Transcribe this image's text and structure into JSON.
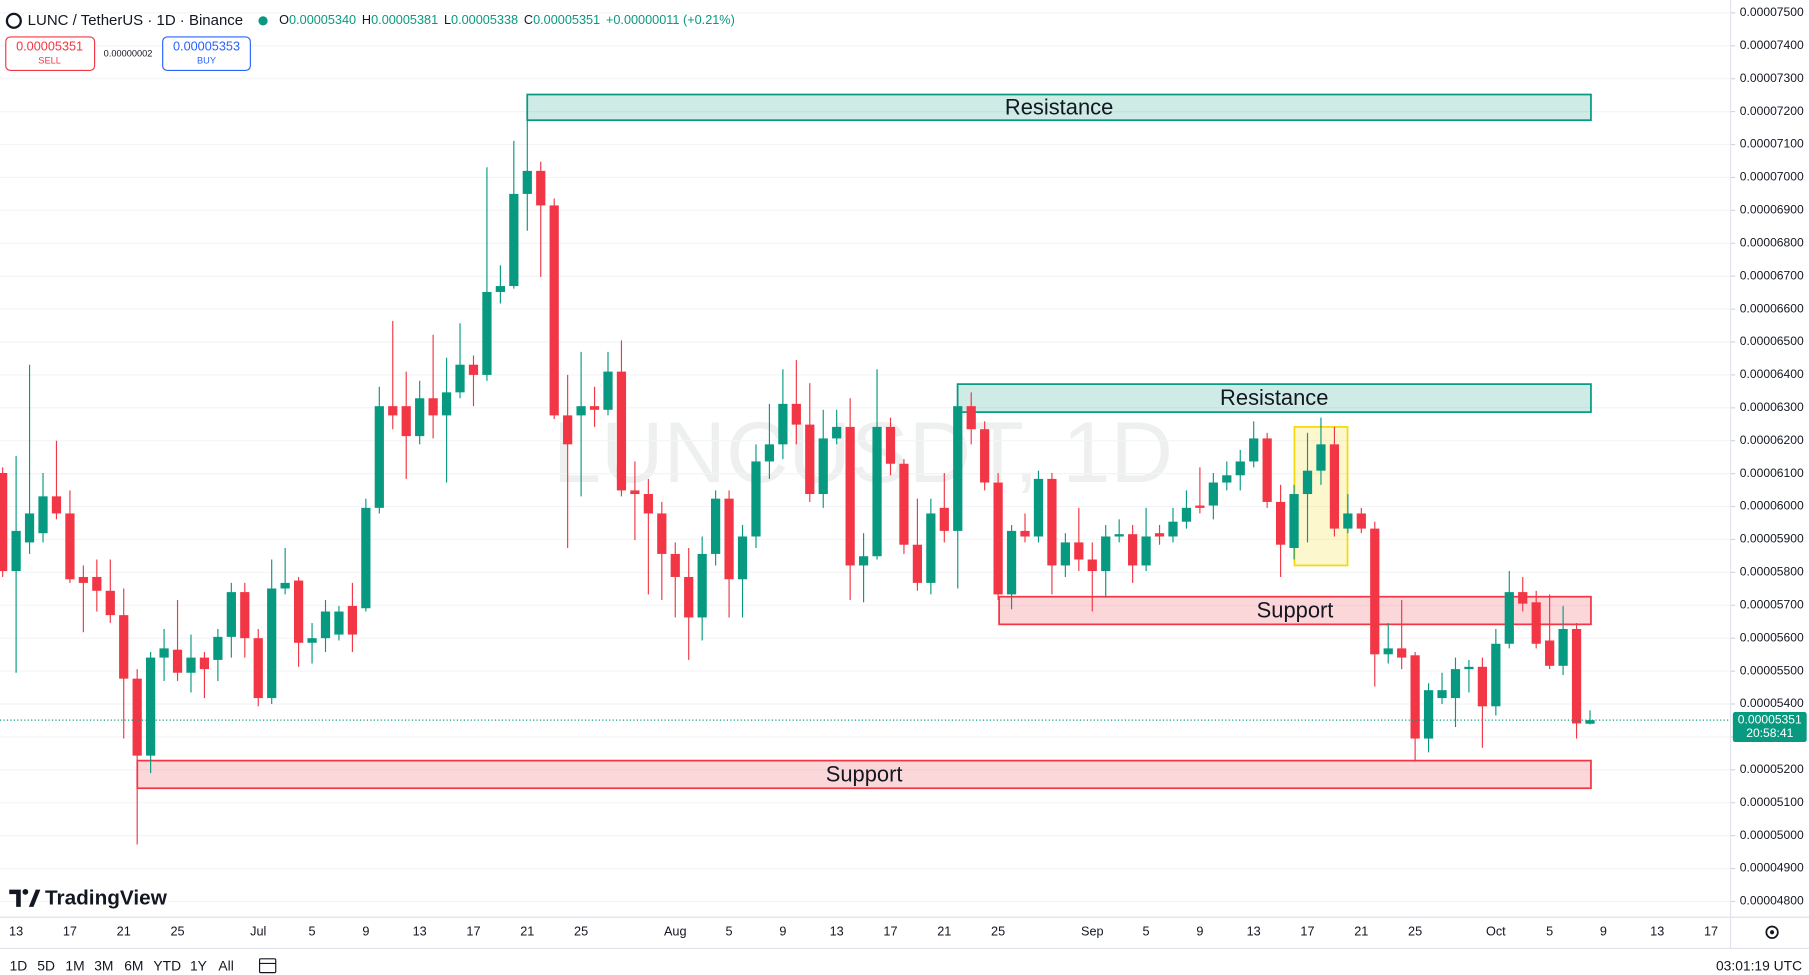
{
  "header": {
    "symbol": "LUNC / TetherUS · 1D · Binance",
    "ohlc": [
      {
        "label": "O",
        "value": "0.00005340"
      },
      {
        "label": "H",
        "value": "0.00005381"
      },
      {
        "label": "L",
        "value": "0.00005338"
      },
      {
        "label": "C",
        "value": "0.00005351"
      }
    ],
    "change": "+0.00000011 (+0.21%)",
    "sell": {
      "price": "0.00005351",
      "label": "SELL"
    },
    "spread": "0.00000002",
    "buy": {
      "price": "0.00005353",
      "label": "BUY"
    }
  },
  "chart_data": {
    "type": "candlestick",
    "watermark": "LUNCUSDT, 1D",
    "categories": [
      null,
      "13",
      null,
      null,
      null,
      "17",
      null,
      null,
      null,
      "21",
      null,
      null,
      null,
      "25",
      null,
      null,
      null,
      null,
      null,
      "Jul",
      null,
      null,
      null,
      "5",
      null,
      null,
      null,
      "9",
      null,
      null,
      null,
      "13",
      null,
      null,
      null,
      "17",
      null,
      null,
      null,
      "21",
      null,
      null,
      null,
      "25",
      null,
      null,
      null,
      null,
      null,
      null,
      "Aug",
      null,
      null,
      null,
      "5",
      null,
      null,
      null,
      "9",
      null,
      null,
      null,
      "13",
      null,
      null,
      null,
      "17",
      null,
      null,
      null,
      "21",
      null,
      null,
      null,
      "25",
      null,
      null,
      null,
      null,
      null,
      null,
      "Sep",
      null,
      null,
      null,
      "5",
      null,
      null,
      null,
      "9",
      null,
      null,
      null,
      "13",
      null,
      null,
      null,
      "17",
      null,
      null,
      null,
      "21",
      null,
      null,
      null,
      "25",
      null,
      null,
      null,
      null,
      null,
      "Oct",
      null,
      null,
      null,
      "5",
      null,
      null,
      null,
      "9",
      null,
      null,
      null,
      "13",
      null,
      null,
      null,
      "17",
      null
    ],
    "open": [
      6.102e-05,
      5.804e-05,
      5.891e-05,
      5.919e-05,
      6.031e-05,
      5.979e-05,
      5.786e-05,
      5.786e-05,
      5.744e-05,
      5.67e-05,
      5.477e-05,
      5.243e-05,
      5.541e-05,
      5.565e-05,
      5.495e-05,
      5.541e-05,
      5.534e-05,
      5.604e-05,
      5.74e-05,
      5.6e-05,
      5.418e-05,
      5.751e-05,
      5.775e-05,
      5.586e-05,
      5.6e-05,
      5.611e-05,
      5.698e-05,
      5.691e-05,
      5.996e-05,
      6.305e-05,
      6.305e-05,
      6.214e-05,
      6.329e-05,
      6.277e-05,
      6.347e-05,
      6.431e-05,
      6.4e-05,
      6.652e-05,
      6.67e-05,
      6.95e-05,
      7.02e-05,
      6.915e-05,
      6.277e-05,
      6.277e-05,
      6.305e-05,
      6.294e-05,
      6.41e-05,
      6.049e-05,
      6.038e-05,
      5.979e-05,
      5.856e-05,
      5.786e-05,
      5.663e-05,
      5.856e-05,
      6.024e-05,
      5.779e-05,
      5.909e-05,
      6.137e-05,
      6.189e-05,
      6.312e-05,
      6.249e-05,
      6.038e-05,
      6.207e-05,
      6.242e-05,
      5.821e-05,
      5.849e-05,
      6.242e-05,
      6.13e-05,
      5.884e-05,
      5.768e-05,
      5.996e-05,
      5.926e-05,
      6.305e-05,
      6.235e-05,
      6.073e-05,
      5.733e-05,
      5.926e-05,
      5.909e-05,
      6.084e-05,
      5.821e-05,
      5.891e-05,
      5.839e-05,
      5.804e-05,
      5.909e-05,
      5.916e-05,
      5.821e-05,
      5.919e-05,
      5.909e-05,
      5.954e-05,
      6.003e-05,
      6.003e-05,
      6.073e-05,
      6.095e-05,
      6.137e-05,
      6.207e-05,
      6.014e-05,
      5.874e-05,
      6.038e-05,
      6.109e-05,
      6.189e-05,
      5.933e-05,
      5.979e-05,
      5.933e-05,
      5.551e-05,
      5.569e-05,
      5.548e-05,
      5.295e-05,
      5.418e-05,
      5.418e-05,
      5.506e-05,
      5.513e-05,
      5.393e-05,
      5.583e-05,
      5.74e-05,
      5.709e-05,
      5.593e-05,
      5.516e-05,
      5.628e-05,
      5.34e-05,
      null,
      null,
      null,
      null,
      null,
      null,
      null,
      null,
      null,
      null
    ],
    "high": [
      6.119e-05,
      6.154e-05,
      6.431e-05,
      6.102e-05,
      6.2e-05,
      6.049e-05,
      5.821e-05,
      5.839e-05,
      5.839e-05,
      5.751e-05,
      5.506e-05,
      5.558e-05,
      5.628e-05,
      5.716e-05,
      5.611e-05,
      5.558e-05,
      5.628e-05,
      5.768e-05,
      5.768e-05,
      5.628e-05,
      5.839e-05,
      5.874e-05,
      5.786e-05,
      5.646e-05,
      5.716e-05,
      5.698e-05,
      5.768e-05,
      6.024e-05,
      6.364e-05,
      6.564e-05,
      6.41e-05,
      6.382e-05,
      6.522e-05,
      6.452e-05,
      6.557e-05,
      6.459e-05,
      7.031e-05,
      6.733e-05,
      7.111e-05,
      7.188e-05,
      7.048e-05,
      6.936e-05,
      6.4e-05,
      6.47e-05,
      6.364e-05,
      6.47e-05,
      6.505e-05,
      6.137e-05,
      6.084e-05,
      6.014e-05,
      5.891e-05,
      5.874e-05,
      5.909e-05,
      6.049e-05,
      6.049e-05,
      5.944e-05,
      6.189e-05,
      6.312e-05,
      6.417e-05,
      6.445e-05,
      6.375e-05,
      6.294e-05,
      6.294e-05,
      6.329e-05,
      5.919e-05,
      6.417e-05,
      6.27e-05,
      6.144e-05,
      6.024e-05,
      6.024e-05,
      6.102e-05,
      6.364e-05,
      6.347e-05,
      6.259e-05,
      6.102e-05,
      5.944e-05,
      5.979e-05,
      6.109e-05,
      6.102e-05,
      5.919e-05,
      5.996e-05,
      5.891e-05,
      5.944e-05,
      5.961e-05,
      5.944e-05,
      5.996e-05,
      5.944e-05,
      5.996e-05,
      6.049e-05,
      6.119e-05,
      6.102e-05,
      6.137e-05,
      6.172e-05,
      6.259e-05,
      6.224e-05,
      6.066e-05,
      6.066e-05,
      6.224e-05,
      6.27e-05,
      6.242e-05,
      6.038e-05,
      5.996e-05,
      5.954e-05,
      5.646e-05,
      5.716e-05,
      5.558e-05,
      5.463e-05,
      5.495e-05,
      5.541e-05,
      5.534e-05,
      5.541e-05,
      5.628e-05,
      5.804e-05,
      5.786e-05,
      5.744e-05,
      5.733e-05,
      5.698e-05,
      5.646e-05,
      5.381e-05,
      null,
      null,
      null,
      null,
      null,
      null,
      null,
      null,
      null,
      null
    ],
    "low": [
      5.786e-05,
      5.495e-05,
      5.856e-05,
      5.891e-05,
      5.961e-05,
      5.768e-05,
      5.618e-05,
      5.681e-05,
      5.646e-05,
      5.295e-05,
      4.973e-05,
      5.19e-05,
      5.47e-05,
      5.47e-05,
      5.435e-05,
      5.418e-05,
      5.47e-05,
      5.541e-05,
      5.541e-05,
      5.393e-05,
      5.4e-05,
      5.733e-05,
      5.513e-05,
      5.523e-05,
      5.558e-05,
      5.593e-05,
      5.558e-05,
      5.681e-05,
      5.979e-05,
      6.235e-05,
      6.084e-05,
      6.189e-05,
      6.207e-05,
      6.073e-05,
      6.329e-05,
      6.305e-05,
      6.382e-05,
      6.617e-05,
      6.662e-05,
      6.838e-05,
      6.698e-05,
      6.266e-05,
      5.874e-05,
      6.031e-05,
      6.242e-05,
      6.277e-05,
      6.031e-05,
      5.898e-05,
      5.733e-05,
      5.716e-05,
      5.663e-05,
      5.534e-05,
      5.593e-05,
      5.821e-05,
      5.663e-05,
      5.663e-05,
      5.874e-05,
      6.084e-05,
      6.144e-05,
      6.189e-05,
      6.014e-05,
      5.996e-05,
      6.189e-05,
      5.716e-05,
      5.709e-05,
      5.839e-05,
      6.095e-05,
      5.856e-05,
      5.744e-05,
      5.733e-05,
      5.891e-05,
      5.751e-05,
      6.189e-05,
      6.049e-05,
      5.716e-05,
      5.688e-05,
      5.891e-05,
      5.891e-05,
      5.733e-05,
      5.786e-05,
      5.804e-05,
      5.681e-05,
      5.723e-05,
      5.891e-05,
      5.768e-05,
      5.804e-05,
      5.884e-05,
      5.891e-05,
      5.933e-05,
      5.979e-05,
      5.961e-05,
      6.049e-05,
      6.049e-05,
      6.119e-05,
      5.996e-05,
      5.786e-05,
      5.839e-05,
      5.891e-05,
      6.066e-05,
      5.909e-05,
      5.919e-05,
      5.919e-05,
      5.453e-05,
      5.523e-05,
      5.506e-05,
      5.225e-05,
      5.253e-05,
      5.4e-05,
      5.33e-05,
      5.435e-05,
      5.267e-05,
      5.365e-05,
      5.569e-05,
      5.681e-05,
      5.569e-05,
      5.506e-05,
      5.488e-05,
      5.295e-05,
      5.338e-05,
      null,
      null,
      null,
      null,
      null,
      null,
      null,
      null,
      null,
      null
    ],
    "close": [
      5.804e-05,
      5.926e-05,
      5.979e-05,
      6.031e-05,
      5.979e-05,
      5.779e-05,
      5.768e-05,
      5.744e-05,
      5.67e-05,
      5.477e-05,
      5.243e-05,
      5.541e-05,
      5.569e-05,
      5.495e-05,
      5.541e-05,
      5.506e-05,
      5.604e-05,
      5.74e-05,
      5.6e-05,
      5.418e-05,
      5.751e-05,
      5.768e-05,
      5.586e-05,
      5.6e-05,
      5.681e-05,
      5.681e-05,
      5.611e-05,
      5.996e-05,
      6.305e-05,
      6.277e-05,
      6.214e-05,
      6.329e-05,
      6.277e-05,
      6.347e-05,
      6.431e-05,
      6.4e-05,
      6.652e-05,
      6.67e-05,
      6.95e-05,
      7.02e-05,
      6.915e-05,
      6.277e-05,
      6.189e-05,
      6.305e-05,
      6.294e-05,
      6.41e-05,
      6.049e-05,
      6.038e-05,
      5.979e-05,
      5.856e-05,
      5.786e-05,
      5.663e-05,
      5.856e-05,
      6.024e-05,
      5.779e-05,
      5.909e-05,
      6.137e-05,
      6.189e-05,
      6.312e-05,
      6.249e-05,
      6.038e-05,
      6.207e-05,
      6.242e-05,
      5.821e-05,
      5.849e-05,
      6.242e-05,
      6.13e-05,
      5.884e-05,
      5.768e-05,
      5.979e-05,
      5.926e-05,
      6.305e-05,
      6.235e-05,
      6.073e-05,
      5.733e-05,
      5.926e-05,
      5.909e-05,
      6.084e-05,
      5.821e-05,
      5.891e-05,
      5.839e-05,
      5.804e-05,
      5.909e-05,
      5.916e-05,
      5.821e-05,
      5.909e-05,
      5.909e-05,
      5.954e-05,
      5.996e-05,
      5.996e-05,
      6.073e-05,
      6.095e-05,
      6.137e-05,
      6.207e-05,
      6.014e-05,
      5.884e-05,
      6.038e-05,
      6.109e-05,
      6.189e-05,
      5.933e-05,
      5.979e-05,
      5.933e-05,
      5.551e-05,
      5.569e-05,
      5.541e-05,
      5.295e-05,
      5.442e-05,
      5.442e-05,
      5.506e-05,
      5.513e-05,
      5.393e-05,
      5.583e-05,
      5.74e-05,
      5.705e-05,
      5.583e-05,
      5.516e-05,
      5.628e-05,
      5.341e-05,
      5.351e-05,
      null,
      null,
      null,
      null,
      null,
      null,
      null,
      null,
      null,
      null
    ],
    "up_color": "#089981",
    "down_color": "#f23645",
    "ylim": [
      4.752e-05,
      7.539e-05
    ],
    "yticks": [
      {
        "value": 4.8e-05,
        "label": "0.00004800"
      },
      {
        "value": 4.9e-05,
        "label": "0.00004900"
      },
      {
        "value": 5e-05,
        "label": "0.00005000"
      },
      {
        "value": 5.1e-05,
        "label": "0.00005100"
      },
      {
        "value": 5.2e-05,
        "label": "0.00005200"
      },
      {
        "value": 5.3e-05,
        "label": "0.00005300"
      },
      {
        "value": 5.4e-05,
        "label": "0.00005400"
      },
      {
        "value": 5.5e-05,
        "label": "0.00005500"
      },
      {
        "value": 5.6e-05,
        "label": "0.00005600"
      },
      {
        "value": 5.7e-05,
        "label": "0.00005700"
      },
      {
        "value": 5.8e-05,
        "label": "0.00005800"
      },
      {
        "value": 5.9e-05,
        "label": "0.00005900"
      },
      {
        "value": 6e-05,
        "label": "0.00006000"
      },
      {
        "value": 6.1e-05,
        "label": "0.00006100"
      },
      {
        "value": 6.2e-05,
        "label": "0.00006200"
      },
      {
        "value": 6.3e-05,
        "label": "0.00006300"
      },
      {
        "value": 6.4e-05,
        "label": "0.00006400"
      },
      {
        "value": 6.5e-05,
        "label": "0.00006500"
      },
      {
        "value": 6.6e-05,
        "label": "0.00006600"
      },
      {
        "value": 6.7e-05,
        "label": "0.00006700"
      },
      {
        "value": 6.8e-05,
        "label": "0.00006800"
      },
      {
        "value": 6.9e-05,
        "label": "0.00006900"
      },
      {
        "value": 7e-05,
        "label": "0.00007000"
      },
      {
        "value": 7.1e-05,
        "label": "0.00007100"
      },
      {
        "value": 7.2e-05,
        "label": "0.00007200"
      },
      {
        "value": 7.3e-05,
        "label": "0.00007300"
      },
      {
        "value": 7.4e-05,
        "label": "0.00007400"
      },
      {
        "value": 7.5e-05,
        "label": "0.00007500"
      }
    ],
    "grid": true,
    "last_price": 5.351e-05,
    "countdown": "20:58:41",
    "zones": [
      {
        "label": "Resistance",
        "high": 7.252e-05,
        "low": 7.174e-05,
        "color": "#089981"
      },
      {
        "label": "Resistance",
        "high": 6.372e-05,
        "low": 6.287e-05,
        "color": "#089981"
      },
      {
        "label": "Support",
        "high": 5.726e-05,
        "low": 5.642e-05,
        "color": "#f23645"
      },
      {
        "label": "Support",
        "high": 5.228e-05,
        "low": 5.144e-05,
        "color": "#f23645"
      }
    ],
    "highlight": {
      "high": 6.242e-05,
      "low": 5.821e-05,
      "color": "#f5d90a"
    }
  },
  "footer": {
    "brand": "TradingView",
    "ranges": [
      "1D",
      "5D",
      "1M",
      "3M",
      "6M",
      "YTD",
      "1Y",
      "All"
    ],
    "time": "03:01:19 UTC"
  }
}
